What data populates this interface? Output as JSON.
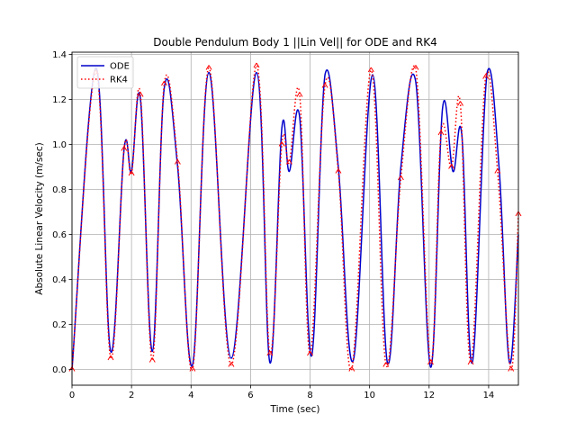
{
  "chart_data": {
    "type": "line",
    "title": "Double Pendulum Body 1 ||Lin Vel|| for ODE and RK4",
    "xlabel": "Time (sec)",
    "ylabel": "Absolute Linear Velocity (m/sec)",
    "xlim": [
      0,
      15
    ],
    "ylim": [
      -0.07,
      1.41
    ],
    "xticks": [
      0,
      2,
      4,
      6,
      8,
      10,
      12,
      14
    ],
    "yticks": [
      0.0,
      0.2,
      0.4,
      0.6,
      0.8,
      1.0,
      1.2,
      1.4
    ],
    "xtick_labels": [
      "0",
      "2",
      "4",
      "6",
      "8",
      "10",
      "12",
      "14"
    ],
    "ytick_labels": [
      "0.0",
      "0.2",
      "0.4",
      "0.6",
      "0.8",
      "1.0",
      "1.2",
      "1.4"
    ],
    "grid": true,
    "legend_position": "top-left",
    "series": [
      {
        "name": "ODE",
        "color": "#0000cc",
        "style": "solid",
        "points": [
          [
            0,
            0.0
          ],
          [
            0.8,
            1.34
          ],
          [
            1.3,
            0.08
          ],
          [
            1.75,
            0.98
          ],
          [
            2.0,
            0.88
          ],
          [
            2.3,
            1.2
          ],
          [
            2.7,
            0.08
          ],
          [
            3.1,
            1.25
          ],
          [
            3.55,
            0.9
          ],
          [
            4.05,
            0.02
          ],
          [
            4.6,
            1.32
          ],
          [
            5.35,
            0.05
          ],
          [
            6.2,
            1.32
          ],
          [
            6.65,
            0.03
          ],
          [
            7.05,
            1.07
          ],
          [
            7.3,
            0.88
          ],
          [
            7.65,
            1.12
          ],
          [
            8.05,
            0.06
          ],
          [
            8.5,
            1.31
          ],
          [
            8.95,
            0.9
          ],
          [
            9.45,
            0.04
          ],
          [
            10.1,
            1.31
          ],
          [
            10.6,
            0.03
          ],
          [
            11.05,
            0.9
          ],
          [
            11.55,
            1.28
          ],
          [
            12.05,
            0.01
          ],
          [
            12.45,
            1.16
          ],
          [
            12.8,
            0.88
          ],
          [
            13.1,
            1.04
          ],
          [
            13.45,
            0.03
          ],
          [
            13.95,
            1.32
          ],
          [
            14.35,
            0.9
          ],
          [
            14.7,
            0.03
          ],
          [
            15.0,
            0.6
          ]
        ]
      },
      {
        "name": "RK4",
        "color": "#ff0000",
        "style": "dotted",
        "points": [
          [
            0,
            0.0
          ],
          [
            0.8,
            1.32
          ],
          [
            1.3,
            0.05
          ],
          [
            1.75,
            0.98
          ],
          [
            2.0,
            0.87
          ],
          [
            2.3,
            1.22
          ],
          [
            2.7,
            0.04
          ],
          [
            3.1,
            1.27
          ],
          [
            3.55,
            0.92
          ],
          [
            4.05,
            0.0
          ],
          [
            4.6,
            1.34
          ],
          [
            5.35,
            0.02
          ],
          [
            6.2,
            1.35
          ],
          [
            6.65,
            0.07
          ],
          [
            7.05,
            1.0
          ],
          [
            7.3,
            0.92
          ],
          [
            7.65,
            1.22
          ],
          [
            8.0,
            0.07
          ],
          [
            8.5,
            1.26
          ],
          [
            8.95,
            0.88
          ],
          [
            9.4,
            0.0
          ],
          [
            10.05,
            1.33
          ],
          [
            10.55,
            0.02
          ],
          [
            11.05,
            0.85
          ],
          [
            11.55,
            1.34
          ],
          [
            12.05,
            0.03
          ],
          [
            12.4,
            1.05
          ],
          [
            12.75,
            0.9
          ],
          [
            13.05,
            1.18
          ],
          [
            13.4,
            0.03
          ],
          [
            13.9,
            1.3
          ],
          [
            14.3,
            0.88
          ],
          [
            14.75,
            0.0
          ],
          [
            15.0,
            0.69
          ]
        ]
      }
    ]
  }
}
